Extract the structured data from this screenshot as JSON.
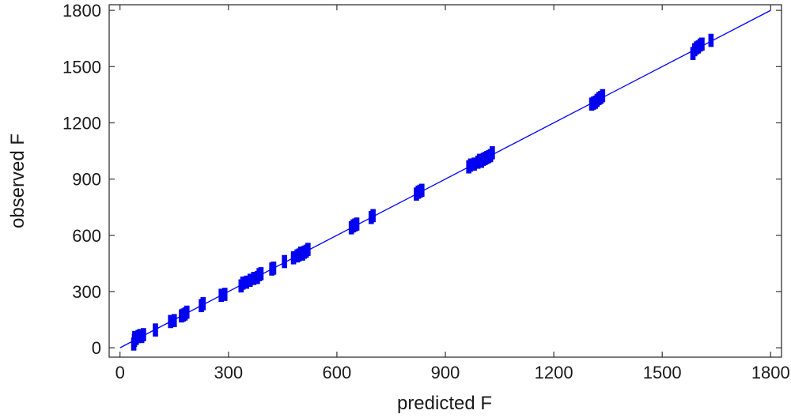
{
  "chart_data": {
    "type": "scatter",
    "title": "",
    "xlabel": "predicted F",
    "ylabel": "observed F",
    "xlim": [
      -30,
      1830
    ],
    "ylim": [
      -50,
      1830
    ],
    "xticks": [
      0,
      300,
      600,
      900,
      1200,
      1500,
      1800
    ],
    "yticks": [
      0,
      300,
      600,
      900,
      1200,
      1500,
      1800
    ],
    "xtick_labels": [
      "0",
      "300",
      "600",
      "900",
      "1200",
      "1500",
      "1800"
    ],
    "ytick_labels": [
      "0",
      "300",
      "600",
      "900",
      "1200",
      "1500",
      "1800"
    ],
    "grid": false,
    "legend": "none",
    "marker_color": "#0000ff",
    "line_color": "#0000ff",
    "reference_line": {
      "x": [
        0,
        1800
      ],
      "y": [
        0,
        1800
      ]
    },
    "series": [
      {
        "marker": "vertical-bar",
        "points": [
          [
            38,
            20
          ],
          [
            40,
            40
          ],
          [
            41,
            55
          ],
          [
            45,
            50
          ],
          [
            50,
            60
          ],
          [
            55,
            65
          ],
          [
            60,
            60
          ],
          [
            65,
            70
          ],
          [
            98,
            95
          ],
          [
            140,
            140
          ],
          [
            150,
            145
          ],
          [
            170,
            170
          ],
          [
            175,
            175
          ],
          [
            180,
            180
          ],
          [
            185,
            190
          ],
          [
            225,
            225
          ],
          [
            230,
            235
          ],
          [
            280,
            280
          ],
          [
            290,
            285
          ],
          [
            335,
            330
          ],
          [
            340,
            345
          ],
          [
            350,
            350
          ],
          [
            360,
            360
          ],
          [
            370,
            370
          ],
          [
            380,
            375
          ],
          [
            385,
            390
          ],
          [
            390,
            395
          ],
          [
            420,
            420
          ],
          [
            425,
            425
          ],
          [
            455,
            460
          ],
          [
            480,
            480
          ],
          [
            490,
            490
          ],
          [
            495,
            495
          ],
          [
            500,
            505
          ],
          [
            505,
            500
          ],
          [
            510,
            510
          ],
          [
            515,
            515
          ],
          [
            520,
            525
          ],
          [
            640,
            640
          ],
          [
            645,
            650
          ],
          [
            650,
            655
          ],
          [
            655,
            660
          ],
          [
            695,
            695
          ],
          [
            700,
            705
          ],
          [
            820,
            820
          ],
          [
            825,
            830
          ],
          [
            830,
            835
          ],
          [
            835,
            840
          ],
          [
            965,
            965
          ],
          [
            970,
            975
          ],
          [
            980,
            980
          ],
          [
            990,
            990
          ],
          [
            995,
            1000
          ],
          [
            1000,
            995
          ],
          [
            1005,
            1005
          ],
          [
            1010,
            1010
          ],
          [
            1015,
            1015
          ],
          [
            1020,
            1020
          ],
          [
            1025,
            1025
          ],
          [
            1030,
            1040
          ],
          [
            1305,
            1300
          ],
          [
            1310,
            1305
          ],
          [
            1315,
            1310
          ],
          [
            1320,
            1320
          ],
          [
            1325,
            1330
          ],
          [
            1330,
            1335
          ],
          [
            1335,
            1345
          ],
          [
            1585,
            1570
          ],
          [
            1590,
            1590
          ],
          [
            1595,
            1600
          ],
          [
            1600,
            1605
          ],
          [
            1605,
            1615
          ],
          [
            1610,
            1620
          ],
          [
            1635,
            1640
          ]
        ]
      }
    ]
  }
}
